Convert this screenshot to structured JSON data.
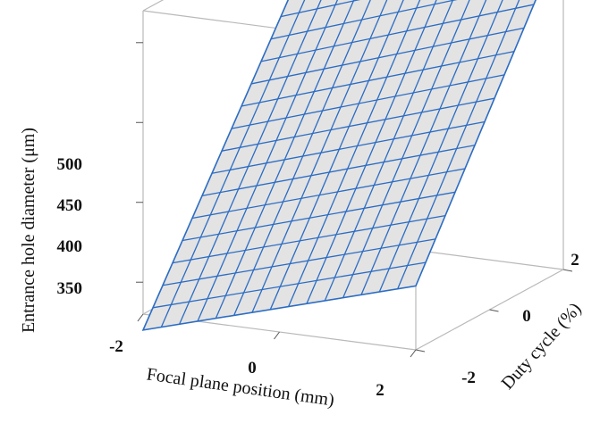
{
  "chart_data": {
    "type": "surface3d",
    "title": "",
    "xlabel": "Focal plane position (mm)",
    "ylabel": "Duty cycle (%)",
    "zlabel": "Entrance hole diameter (μm)",
    "xticks": [
      "-2",
      "0",
      "2"
    ],
    "yticks": [
      "-2",
      "0",
      "2"
    ],
    "zticks": [
      "350",
      "400",
      "450",
      "500"
    ],
    "xlim": [
      -2,
      2
    ],
    "ylim": [
      -2,
      2
    ],
    "zlim": [
      330,
      520
    ],
    "grid_divisions": 15,
    "surface_corners": [
      {
        "x": -2,
        "y": -2,
        "z": 320
      },
      {
        "x": 2,
        "y": -2,
        "z": 370
      },
      {
        "x": -2,
        "y": 2,
        "z": 480
      },
      {
        "x": 2,
        "y": 2,
        "z": 540
      }
    ],
    "surface_fill": "#e3e3e3",
    "mesh_color": "#2b6cc4",
    "box_color": "#b9b9b9"
  }
}
